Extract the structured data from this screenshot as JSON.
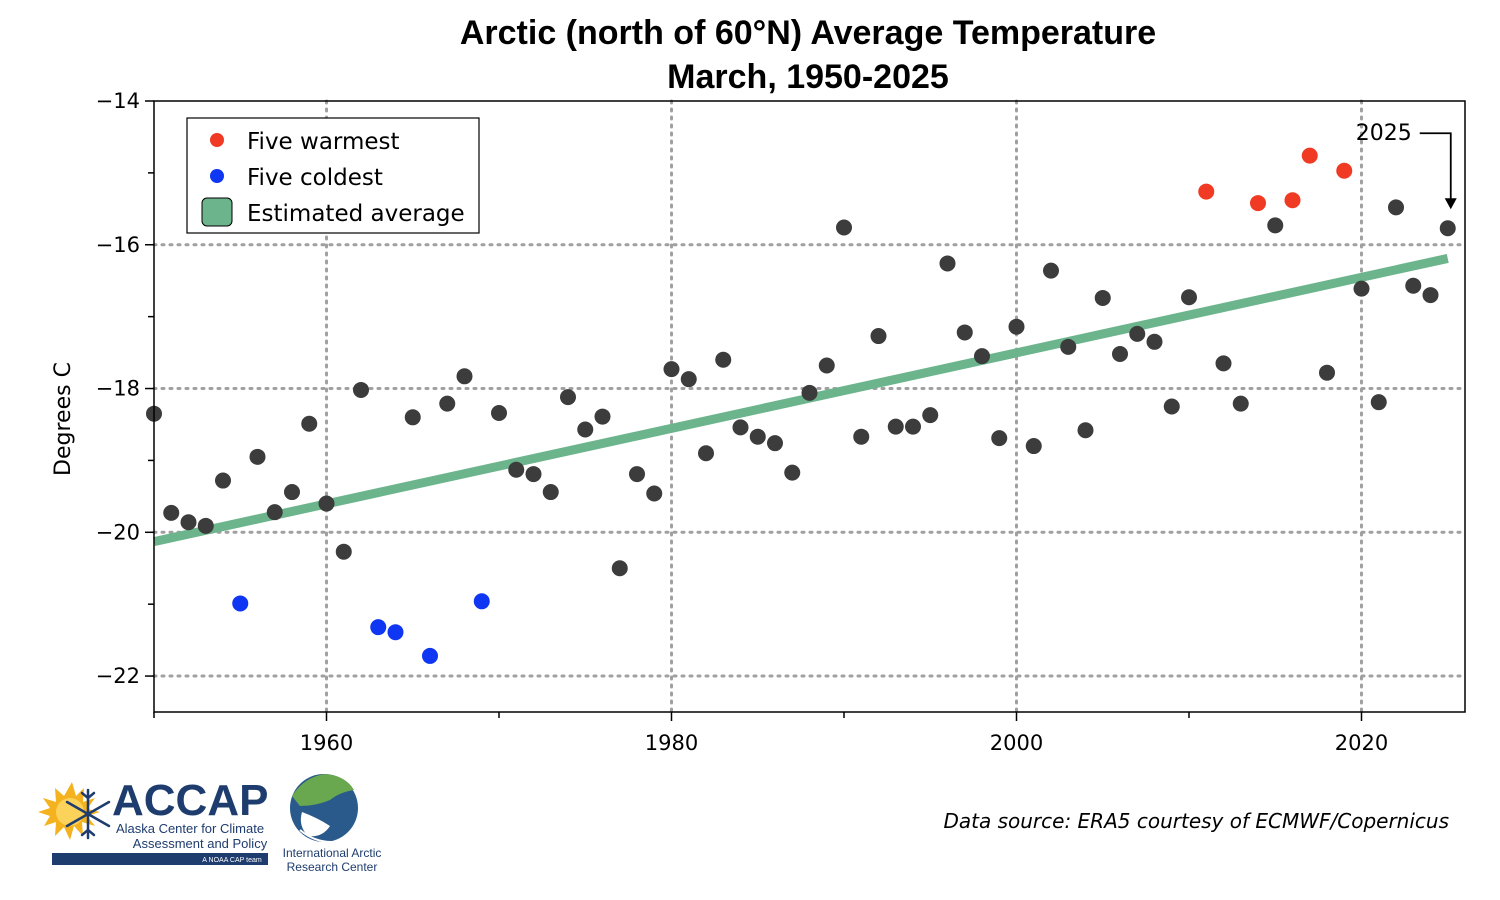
{
  "colors": {
    "normal": "#3c3c3c",
    "warm": "#f03a23",
    "cold": "#0f36f2",
    "trend": "#6bb48c",
    "grid": "#a0a0a0",
    "logo_blue": "#1e3c6e",
    "logo_sun": "#f4b21e"
  },
  "chart_data": {
    "type": "scatter",
    "title": [
      "Arctic (north of 60°N) Average Temperature",
      "March, 1950-2025"
    ],
    "xlabel": "",
    "ylabel": "Degrees C",
    "xlim": [
      1950,
      2026
    ],
    "ylim": [
      -22.5,
      -14
    ],
    "x_ticks": [
      1960,
      1980,
      2000,
      2020
    ],
    "x_tick_labels": [
      "1960",
      "1980",
      "2000",
      "2020"
    ],
    "x_minor_ticks": [
      1950,
      1970,
      1990,
      2010
    ],
    "y_ticks": [
      -22,
      -20,
      -18,
      -16,
      -14
    ],
    "y_tick_labels": [
      "−22",
      "−20",
      "−18",
      "−16",
      "−14"
    ],
    "y_minor_ticks": [
      -21,
      -19,
      -17,
      -15
    ],
    "grid": true,
    "legend_position": "top-left",
    "legend": [
      {
        "label": "Five warmest",
        "kind": "dot",
        "color": "#f03a23"
      },
      {
        "label": "Five coldest",
        "kind": "dot",
        "color": "#0f36f2"
      },
      {
        "label": "Estimated average",
        "kind": "box",
        "color": "#6bb48c"
      }
    ],
    "points": [
      {
        "x": 1950,
        "y": -18.35,
        "c": "normal"
      },
      {
        "x": 1951,
        "y": -19.73,
        "c": "normal"
      },
      {
        "x": 1952,
        "y": -19.86,
        "c": "normal"
      },
      {
        "x": 1953,
        "y": -19.91,
        "c": "normal"
      },
      {
        "x": 1954,
        "y": -19.28,
        "c": "normal"
      },
      {
        "x": 1955,
        "y": -20.99,
        "c": "cold"
      },
      {
        "x": 1956,
        "y": -18.95,
        "c": "normal"
      },
      {
        "x": 1957,
        "y": -19.72,
        "c": "normal"
      },
      {
        "x": 1958,
        "y": -19.44,
        "c": "normal"
      },
      {
        "x": 1959,
        "y": -18.49,
        "c": "normal"
      },
      {
        "x": 1960,
        "y": -19.6,
        "c": "normal"
      },
      {
        "x": 1961,
        "y": -20.27,
        "c": "normal"
      },
      {
        "x": 1962,
        "y": -18.02,
        "c": "normal"
      },
      {
        "x": 1963,
        "y": -21.32,
        "c": "cold"
      },
      {
        "x": 1964,
        "y": -21.39,
        "c": "cold"
      },
      {
        "x": 1965,
        "y": -18.4,
        "c": "normal"
      },
      {
        "x": 1966,
        "y": -21.72,
        "c": "cold"
      },
      {
        "x": 1967,
        "y": -18.21,
        "c": "normal"
      },
      {
        "x": 1968,
        "y": -17.83,
        "c": "normal"
      },
      {
        "x": 1969,
        "y": -20.96,
        "c": "cold"
      },
      {
        "x": 1970,
        "y": -18.34,
        "c": "normal"
      },
      {
        "x": 1971,
        "y": -19.13,
        "c": "normal"
      },
      {
        "x": 1972,
        "y": -19.19,
        "c": "normal"
      },
      {
        "x": 1973,
        "y": -19.44,
        "c": "normal"
      },
      {
        "x": 1974,
        "y": -18.12,
        "c": "normal"
      },
      {
        "x": 1975,
        "y": -18.57,
        "c": "normal"
      },
      {
        "x": 1976,
        "y": -18.39,
        "c": "normal"
      },
      {
        "x": 1977,
        "y": -20.5,
        "c": "normal"
      },
      {
        "x": 1978,
        "y": -19.19,
        "c": "normal"
      },
      {
        "x": 1979,
        "y": -19.46,
        "c": "normal"
      },
      {
        "x": 1980,
        "y": -17.73,
        "c": "normal"
      },
      {
        "x": 1981,
        "y": -17.87,
        "c": "normal"
      },
      {
        "x": 1982,
        "y": -18.9,
        "c": "normal"
      },
      {
        "x": 1983,
        "y": -17.6,
        "c": "normal"
      },
      {
        "x": 1984,
        "y": -18.54,
        "c": "normal"
      },
      {
        "x": 1985,
        "y": -18.67,
        "c": "normal"
      },
      {
        "x": 1986,
        "y": -18.76,
        "c": "normal"
      },
      {
        "x": 1987,
        "y": -19.17,
        "c": "normal"
      },
      {
        "x": 1988,
        "y": -18.06,
        "c": "normal"
      },
      {
        "x": 1989,
        "y": -17.68,
        "c": "normal"
      },
      {
        "x": 1990,
        "y": -15.76,
        "c": "normal"
      },
      {
        "x": 1991,
        "y": -18.67,
        "c": "normal"
      },
      {
        "x": 1992,
        "y": -17.27,
        "c": "normal"
      },
      {
        "x": 1993,
        "y": -18.53,
        "c": "normal"
      },
      {
        "x": 1994,
        "y": -18.53,
        "c": "normal"
      },
      {
        "x": 1995,
        "y": -18.37,
        "c": "normal"
      },
      {
        "x": 1996,
        "y": -16.26,
        "c": "normal"
      },
      {
        "x": 1997,
        "y": -17.22,
        "c": "normal"
      },
      {
        "x": 1998,
        "y": -17.55,
        "c": "normal"
      },
      {
        "x": 1999,
        "y": -18.69,
        "c": "normal"
      },
      {
        "x": 2000,
        "y": -17.14,
        "c": "normal"
      },
      {
        "x": 2001,
        "y": -18.8,
        "c": "normal"
      },
      {
        "x": 2002,
        "y": -16.36,
        "c": "normal"
      },
      {
        "x": 2003,
        "y": -17.42,
        "c": "normal"
      },
      {
        "x": 2004,
        "y": -18.58,
        "c": "normal"
      },
      {
        "x": 2005,
        "y": -16.74,
        "c": "normal"
      },
      {
        "x": 2006,
        "y": -17.52,
        "c": "normal"
      },
      {
        "x": 2007,
        "y": -17.24,
        "c": "normal"
      },
      {
        "x": 2008,
        "y": -17.35,
        "c": "normal"
      },
      {
        "x": 2009,
        "y": -18.25,
        "c": "normal"
      },
      {
        "x": 2010,
        "y": -16.73,
        "c": "normal"
      },
      {
        "x": 2011,
        "y": -15.26,
        "c": "warm"
      },
      {
        "x": 2012,
        "y": -17.65,
        "c": "normal"
      },
      {
        "x": 2013,
        "y": -18.21,
        "c": "normal"
      },
      {
        "x": 2014,
        "y": -15.42,
        "c": "warm"
      },
      {
        "x": 2015,
        "y": -15.73,
        "c": "normal"
      },
      {
        "x": 2016,
        "y": -15.38,
        "c": "warm"
      },
      {
        "x": 2017,
        "y": -14.76,
        "c": "warm"
      },
      {
        "x": 2018,
        "y": -17.78,
        "c": "normal"
      },
      {
        "x": 2019,
        "y": -14.97,
        "c": "warm"
      },
      {
        "x": 2020,
        "y": -16.61,
        "c": "normal"
      },
      {
        "x": 2021,
        "y": -18.19,
        "c": "normal"
      },
      {
        "x": 2022,
        "y": -15.48,
        "c": "normal"
      },
      {
        "x": 2023,
        "y": -16.57,
        "c": "normal"
      },
      {
        "x": 2024,
        "y": -16.7,
        "c": "normal"
      },
      {
        "x": 2025,
        "y": -15.77,
        "c": "normal"
      }
    ],
    "trend_line": {
      "x": [
        1950,
        2025
      ],
      "y": [
        -20.13,
        -16.19
      ]
    },
    "annotations": [
      {
        "text": "2025",
        "x": 2025,
        "y": -15.77
      }
    ]
  },
  "footer": {
    "source": "Data source: ERA5 courtesy of ECMWF/Copernicus",
    "accap": {
      "acronym": "ACCAP",
      "line1": "Alaska Center for Climate",
      "line2": "Assessment and Policy",
      "tag": "A NOAA CAP team"
    },
    "iarc": {
      "line1": "International Arctic",
      "line2": "Research Center"
    }
  }
}
